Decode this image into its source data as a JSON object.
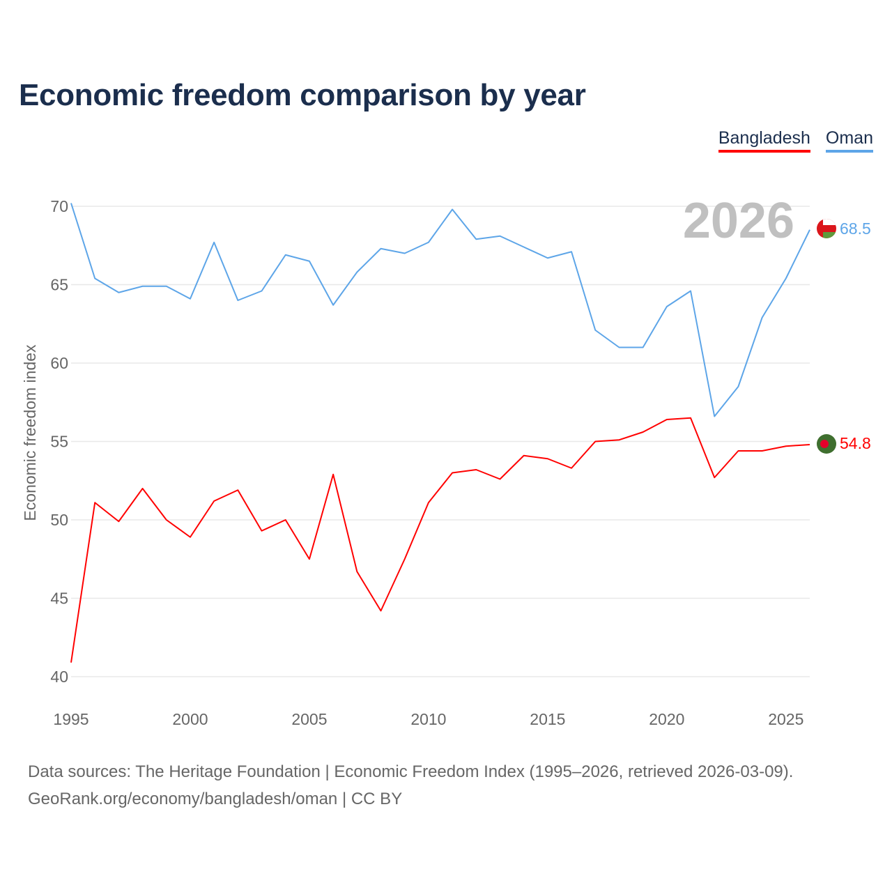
{
  "title": "Economic freedom comparison by year",
  "year_watermark": "2026",
  "source_line1": "Data sources: The Heritage Foundation | Economic Freedom Index (1995–2026, retrieved 2026-03-09).",
  "source_line2": "GeoRank.org/economy/bangladesh/oman | CC BY",
  "chart_data": {
    "type": "line",
    "title": "Economic freedom comparison by year",
    "xlabel": "",
    "ylabel": "Economic freedom index",
    "xlim": [
      1995,
      2026
    ],
    "ylim": [
      40,
      70
    ],
    "x_ticks": [
      "1995",
      "2000",
      "2005",
      "2010",
      "2015",
      "2020",
      "2025"
    ],
    "y_ticks": [
      "40",
      "45",
      "50",
      "55",
      "60",
      "65",
      "70"
    ],
    "grid": true,
    "legend_position": "top-right",
    "x": [
      1995,
      1996,
      1997,
      1998,
      1999,
      2000,
      2001,
      2002,
      2003,
      2004,
      2005,
      2006,
      2007,
      2008,
      2009,
      2010,
      2011,
      2012,
      2013,
      2014,
      2015,
      2016,
      2017,
      2018,
      2019,
      2020,
      2021,
      2022,
      2023,
      2024,
      2025,
      2026
    ],
    "series": [
      {
        "name": "Bangladesh",
        "color": "#ff0000",
        "end_label": "54.8",
        "values": [
          40.9,
          51.1,
          49.9,
          52.0,
          50.0,
          48.9,
          51.2,
          51.9,
          49.3,
          50.0,
          47.5,
          52.9,
          46.7,
          44.2,
          47.5,
          51.1,
          53.0,
          53.2,
          52.6,
          54.1,
          53.9,
          53.3,
          55.0,
          55.1,
          55.6,
          56.4,
          56.5,
          52.7,
          54.4,
          54.4,
          54.7,
          54.8
        ]
      },
      {
        "name": "Oman",
        "color": "#5da5e8",
        "end_label": "68.5",
        "values": [
          70.2,
          65.4,
          64.5,
          64.9,
          64.9,
          64.1,
          67.7,
          64.0,
          64.6,
          66.9,
          66.5,
          63.7,
          65.8,
          67.3,
          67.0,
          67.7,
          69.8,
          67.9,
          68.1,
          67.4,
          66.7,
          67.1,
          62.1,
          61.0,
          61.0,
          63.6,
          64.6,
          56.6,
          58.5,
          62.9,
          65.4,
          68.5
        ]
      }
    ]
  }
}
